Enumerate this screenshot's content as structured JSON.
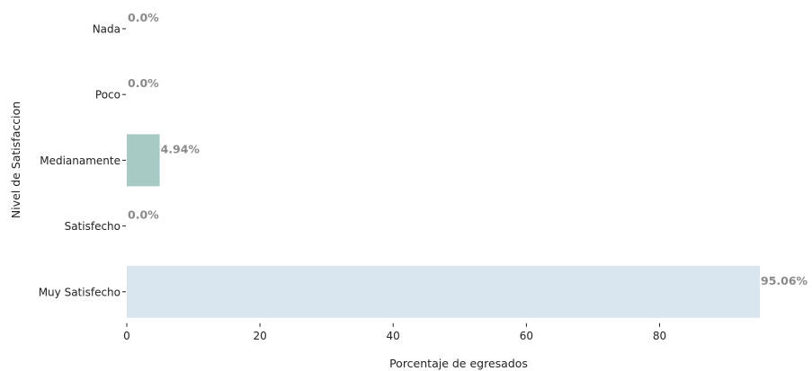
{
  "chart_data": {
    "type": "bar",
    "orientation": "horizontal",
    "categories": [
      "Nada",
      "Poco",
      "Medianamente",
      "Satisfecho",
      "Muy Satisfecho"
    ],
    "values": [
      0.0,
      0.0,
      4.94,
      0.0,
      95.06
    ],
    "value_labels": [
      "0.0%",
      "0.0%",
      "4.94%",
      "0.0%",
      "95.06%"
    ],
    "bar_colors": [
      "#a9cbe0",
      "#a9cbe0",
      "#a7cbc4",
      "#a9cbe0",
      "#d9e5ef"
    ],
    "label_color": "#8a8a8a",
    "xlabel": "Porcentaje de egresados",
    "ylabel": "Nivel de Satisfaccion",
    "xticks": [
      0,
      20,
      40,
      60,
      80
    ],
    "xlim": [
      0,
      95.06
    ],
    "grid": false
  }
}
